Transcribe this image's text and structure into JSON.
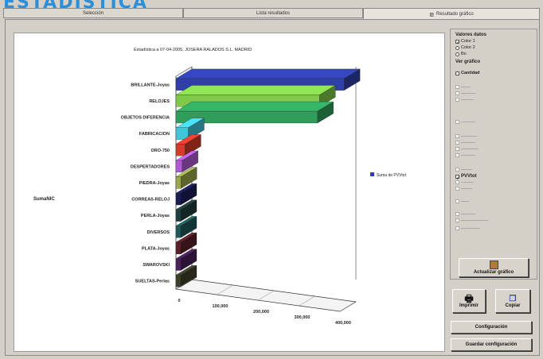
{
  "heading": "ESTADÍSTICA",
  "tabs": [
    "Selección",
    "Lista resultados",
    "Resultado gráfico"
  ],
  "legend": {
    "label": "Suma de PVVtot"
  },
  "panel": {
    "valores_title": "Valores datos",
    "color1": "Color 1",
    "color2": "Color 2",
    "bn": "Bn",
    "ver_grafico_title": "Ver gráfico",
    "cantidad": "Cantidad",
    "pvvtot": "PVVtot"
  },
  "buttons": {
    "actualizar": "Actualizar gráfico",
    "imprimir": "Imprimir",
    "copiar": "Copiar",
    "configuracion": "Configuración",
    "guardar": "Guardar configuración"
  },
  "chart_data": {
    "type": "bar",
    "orientation": "horizontal",
    "title": "Estadística a 07-04-2005, JOSERA RALADOS S.L. MADRID",
    "ylabel": "SumaNIC",
    "categories": [
      "BRILLANTE-Joyas",
      "RELOJES",
      "OBJETOS DIFERENCIA",
      "FABRICACION",
      "ORO-750",
      "DESPERTADORES",
      "PIEDRA-Joyas",
      "CORREAS-RELOJ",
      "PERLA-Joyas",
      "DIVERSOS",
      "PLATA-Joyas",
      "SWAROVSKI",
      "SUELTAS-Perlas"
    ],
    "values": [
      410000,
      350000,
      345000,
      30000,
      22000,
      15000,
      12000,
      8000,
      7000,
      5000,
      4000,
      3000,
      2000
    ],
    "colors": [
      "#2f3fa8",
      "#7ec84a",
      "#2f9e5a",
      "#3fc6d8",
      "#d83a2a",
      "#b25ad6",
      "#9ca84a",
      "#1c1c5a",
      "#1f3f3f",
      "#1f5a5a",
      "#5a1f2a",
      "#4a1f5a",
      "#3f3f2a"
    ],
    "xticks": [
      "0",
      "100,000",
      "200,000",
      "300,000",
      "400,000"
    ],
    "xlim": [
      0,
      400000
    ]
  }
}
